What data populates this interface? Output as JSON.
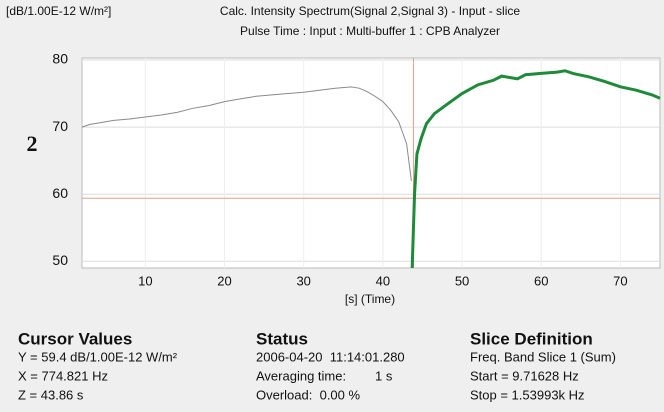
{
  "chart_data": {
    "type": "line",
    "unit_label": "[dB/1.00E-12 W/m²]",
    "title": "Calc. Intensity Spectrum(Signal 2,Signal 3) - Input - slice",
    "subtitle": "Pulse Time : Input : Multi-buffer 1 : CPB Analyzer",
    "channel_label": "2",
    "x_label": "[s] (Time)",
    "xlim": [
      2,
      75
    ],
    "xticks": [
      10,
      20,
      30,
      40,
      50,
      60,
      70
    ],
    "ylim": [
      49,
      80.3
    ],
    "yticks": [
      50,
      60,
      70,
      80
    ],
    "grid": true,
    "cursor": {
      "x": 43.86,
      "y": 59.4,
      "color": "#e0a090"
    },
    "series": [
      {
        "name": "Signal 2",
        "color": "#8a8a8a",
        "x": [
          2,
          3,
          4,
          5,
          6,
          8,
          10,
          12,
          14,
          16,
          18,
          20,
          22,
          24,
          26,
          28,
          30,
          32,
          34,
          36,
          37,
          38,
          39,
          40,
          41,
          42,
          43,
          43.6
        ],
        "values": [
          70,
          70.4,
          70.6,
          70.8,
          71,
          71.2,
          71.5,
          71.8,
          72.2,
          72.8,
          73.2,
          73.8,
          74.2,
          74.6,
          74.8,
          75,
          75.2,
          75.5,
          75.8,
          76,
          75.8,
          75.3,
          74.6,
          73.8,
          72.5,
          70.8,
          67.5,
          62
        ]
      },
      {
        "name": "Signal 3",
        "color": "#1e8a3a",
        "x": [
          43.7,
          44,
          44.3,
          44.8,
          45.5,
          46.5,
          48,
          50,
          52,
          54,
          55,
          57,
          58,
          60,
          62,
          63,
          64,
          66,
          68,
          70,
          72,
          74,
          75
        ],
        "values": [
          49,
          60,
          66,
          68.2,
          70.5,
          72,
          73.3,
          75,
          76.3,
          77,
          77.6,
          77.2,
          77.8,
          78,
          78.2,
          78.4,
          78,
          77.5,
          76.8,
          76,
          75.5,
          74.8,
          74.3
        ]
      }
    ]
  },
  "panels": [
    {
      "title": "Cursor Values",
      "lines": [
        "Y = 59.4 dB/1.00E-12 W/m²",
        "X = 774.821 Hz",
        "Z = 43.86 s"
      ]
    },
    {
      "title": "Status",
      "lines": [
        "2006-04-20  11:14:01.280",
        "Averaging time:        1 s",
        "Overload:  0.00 %"
      ]
    },
    {
      "title": "Slice Definition",
      "lines": [
        "Freq. Band Slice 1 (Sum)",
        "Start = 9.71628 Hz",
        "Stop = 1.53993k Hz"
      ]
    }
  ]
}
